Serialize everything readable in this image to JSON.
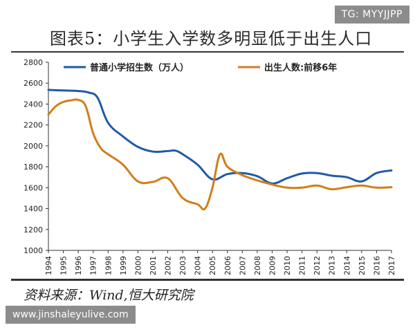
{
  "watermark_top": "TG: MYYJJPP",
  "watermark_bottom": "www.jinshaleyulive.com",
  "source": "资料来源：Wind,恒大研究院",
  "chart_data": {
    "type": "line",
    "title": "图表5：小学生入学数多明显低于出生人口",
    "xlabel": "",
    "ylabel": "",
    "ylim": [
      1000,
      2800
    ],
    "yticks": [
      1000,
      1200,
      1400,
      1600,
      1800,
      2000,
      2200,
      2400,
      2600,
      2800
    ],
    "grid": false,
    "legend_position": "top",
    "categories": [
      "1994",
      "1995",
      "1996",
      "1997",
      "1998",
      "1999",
      "2000",
      "2001",
      "2002",
      "2003",
      "2004",
      "2005",
      "2006",
      "2007",
      "2008",
      "2009",
      "2010",
      "2011",
      "2012",
      "2013",
      "2014",
      "2015",
      "2016",
      "2017"
    ],
    "series": [
      {
        "name": "普通小学招生数（万人）",
        "color": "#1f5aa6",
        "x": [
          1994,
          1995,
          1996,
          1996.7,
          1997.3,
          1998,
          1999,
          2000,
          2001,
          2002,
          2002.5,
          2003,
          2004,
          2005,
          2006,
          2007,
          2008,
          2009,
          2010,
          2011,
          2012,
          2013,
          2014,
          2015,
          2016,
          2017
        ],
        "values": [
          2535,
          2530,
          2525,
          2510,
          2460,
          2220,
          2090,
          1990,
          1945,
          1950,
          1955,
          1920,
          1820,
          1680,
          1730,
          1740,
          1710,
          1640,
          1690,
          1735,
          1740,
          1715,
          1700,
          1660,
          1740,
          1765
        ]
      },
      {
        "name": "出生人数:前移6年",
        "color": "#d27d1a",
        "x": [
          1994,
          1994.5,
          1995,
          1995.5,
          1996,
          1996.5,
          1997,
          1997.5,
          1998,
          1999,
          2000,
          2001,
          2002,
          2003,
          2004,
          2004.5,
          2005,
          2005.5,
          2006,
          2007,
          2008,
          2009,
          2010,
          2011,
          2012,
          2013,
          2014,
          2015,
          2016,
          2017
        ],
        "values": [
          2300,
          2380,
          2420,
          2435,
          2440,
          2380,
          2120,
          1980,
          1920,
          1820,
          1660,
          1655,
          1690,
          1500,
          1440,
          1400,
          1600,
          1920,
          1800,
          1720,
          1670,
          1630,
          1600,
          1600,
          1620,
          1585,
          1605,
          1620,
          1600,
          1605
        ]
      }
    ]
  }
}
